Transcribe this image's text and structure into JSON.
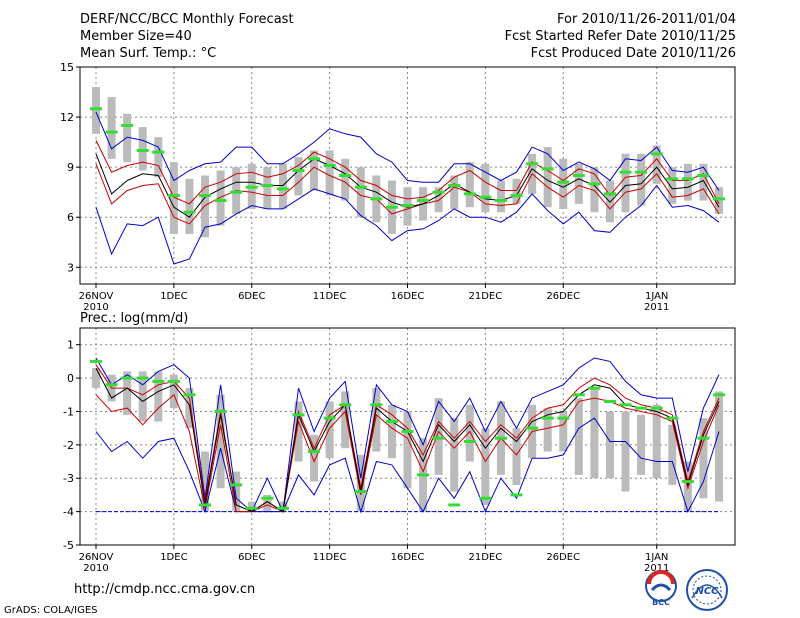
{
  "header": {
    "title": "DERF/NCC/BCC Monthly Forecast",
    "member": "Member Size=40",
    "variable": "Mean Surf. Temp.: °C",
    "forecast_period": "For 2010/11/26-2011/01/04",
    "started": "Fcst Started Refer Date 2010/11/25",
    "produced": "Fcst Produced Date 2010/11/26"
  },
  "footer": {
    "url": "http://cmdp.ncc.cma.gov.cn",
    "grads": "GrADS: COLA/IGES"
  },
  "logos": {
    "bcc": "BCC",
    "ncc": "NCC"
  },
  "colors": {
    "envelope": "#0000cc",
    "spread": "#cc0000",
    "mean": "#000000",
    "obs": "#33dd33",
    "box": "#bbbbbb",
    "zero": "#0000cc"
  },
  "chart_data": [
    {
      "type": "line",
      "title": "Mean Surf. Temp.: °C",
      "xlabel": "",
      "ylabel": "",
      "ylim": [
        2,
        15
      ],
      "yticks": [
        3,
        6,
        9,
        12,
        15
      ],
      "grid": true,
      "x_ticks": [
        {
          "day": 0,
          "label": "26NOV"
        },
        {
          "day": 5,
          "label": "1DEC"
        },
        {
          "day": 10,
          "label": "6DEC"
        },
        {
          "day": 15,
          "label": "11DEC"
        },
        {
          "day": 20,
          "label": "16DEC"
        },
        {
          "day": 25,
          "label": "21DEC"
        },
        {
          "day": 30,
          "label": "26DEC"
        },
        {
          "day": 36,
          "label": "1JAN"
        }
      ],
      "year_labels": [
        {
          "day": 0,
          "label": "2010"
        },
        {
          "day": 36,
          "label": "2011"
        }
      ],
      "series": [
        {
          "name": "max",
          "values": [
            12.3,
            10.1,
            10.8,
            10.6,
            10.2,
            8.2,
            8.8,
            9.2,
            9.3,
            10.2,
            10.2,
            9.2,
            9.2,
            9.8,
            10.5,
            11.3,
            11.0,
            10.8,
            9.8,
            9.3,
            8.2,
            8.1,
            8.1,
            9.2,
            9.2,
            8.7,
            8.2,
            8.7,
            10.2,
            9.8,
            8.8,
            9.3,
            8.9,
            8.2,
            9.5,
            9.4,
            10.2,
            8.8,
            8.7,
            9.0,
            7.6
          ]
        },
        {
          "name": "spread_high",
          "values": [
            10.6,
            8.7,
            9.1,
            9.3,
            9.1,
            7.2,
            6.8,
            7.8,
            8.1,
            8.6,
            8.7,
            8.4,
            8.6,
            9.1,
            9.9,
            9.5,
            9.0,
            8.2,
            7.9,
            7.3,
            7.1,
            7.2,
            7.6,
            8.4,
            8.8,
            8.1,
            7.6,
            7.6,
            9.3,
            8.8,
            8.2,
            8.9,
            8.6,
            7.3,
            8.4,
            8.5,
            9.5,
            8.2,
            8.2,
            8.6,
            6.8
          ]
        },
        {
          "name": "ensemble_mean",
          "values": [
            9.8,
            7.4,
            8.2,
            8.6,
            8.5,
            6.6,
            6.0,
            7.2,
            7.7,
            8.1,
            8.1,
            7.9,
            7.9,
            8.8,
            9.5,
            9.1,
            8.6,
            7.8,
            7.5,
            6.9,
            6.6,
            6.8,
            7.3,
            8.0,
            7.5,
            7.1,
            7.0,
            7.3,
            8.9,
            8.2,
            7.8,
            8.3,
            7.9,
            6.9,
            7.9,
            8.0,
            9.0,
            7.7,
            7.8,
            8.2,
            6.6
          ]
        },
        {
          "name": "spread_low",
          "values": [
            9.2,
            6.8,
            7.6,
            7.9,
            8.0,
            6.0,
            5.6,
            6.7,
            7.2,
            7.6,
            7.5,
            7.3,
            7.3,
            8.1,
            9.0,
            8.5,
            8.1,
            7.3,
            7.1,
            6.2,
            6.5,
            6.8,
            7.0,
            7.8,
            7.5,
            6.8,
            6.7,
            6.8,
            8.6,
            7.8,
            7.2,
            7.9,
            7.6,
            6.5,
            7.5,
            7.7,
            8.6,
            7.2,
            7.3,
            7.7,
            6.2
          ]
        },
        {
          "name": "min",
          "values": [
            6.6,
            3.8,
            5.6,
            5.5,
            6.0,
            3.2,
            3.5,
            5.4,
            5.6,
            6.2,
            6.7,
            6.5,
            6.5,
            7.1,
            7.7,
            7.4,
            7.1,
            6.1,
            5.5,
            4.6,
            5.2,
            5.3,
            5.8,
            6.5,
            6.0,
            6.0,
            5.7,
            6.3,
            7.4,
            6.4,
            5.6,
            6.3,
            5.2,
            5.1,
            6.0,
            6.7,
            7.9,
            6.6,
            6.7,
            6.4,
            5.7
          ]
        },
        {
          "name": "box_top",
          "values": [
            13.8,
            13.2,
            12.2,
            11.4,
            10.8,
            9.3,
            8.3,
            8.5,
            8.8,
            9.0,
            9.2,
            9.0,
            9.2,
            9.6,
            10.0,
            10.0,
            9.5,
            9.0,
            8.5,
            8.2,
            7.8,
            7.8,
            7.8,
            8.5,
            9.3,
            9.2,
            8.2,
            8.3,
            9.8,
            10.2,
            9.5,
            9.2,
            9.0,
            8.2,
            9.8,
            9.8,
            10.3,
            9.0,
            9.2,
            9.2,
            7.8
          ]
        },
        {
          "name": "box_bottom",
          "values": [
            11.0,
            9.5,
            9.3,
            8.8,
            8.4,
            5.0,
            5.0,
            4.8,
            5.5,
            6.2,
            6.5,
            6.5,
            6.5,
            7.3,
            7.6,
            7.3,
            7.0,
            6.0,
            5.7,
            5.0,
            5.5,
            5.8,
            6.3,
            6.5,
            6.6,
            6.3,
            6.3,
            6.8,
            7.4,
            6.6,
            6.5,
            6.8,
            6.3,
            5.7,
            6.3,
            6.7,
            8.0,
            6.8,
            7.0,
            7.0,
            6.2
          ]
        },
        {
          "name": "observed",
          "values": [
            12.5,
            11.1,
            11.5,
            10.0,
            9.9,
            7.3,
            6.3,
            7.3,
            7.0,
            7.5,
            7.8,
            7.9,
            7.7,
            8.8,
            9.5,
            9.1,
            8.5,
            7.8,
            7.1,
            6.6,
            6.7,
            7.0,
            7.5,
            7.9,
            7.4,
            7.2,
            7.0,
            7.3,
            9.2,
            8.9,
            8.1,
            8.5,
            8.0,
            7.4,
            8.7,
            8.7,
            9.8,
            8.3,
            8.3,
            8.5,
            7.1
          ]
        }
      ]
    },
    {
      "type": "line",
      "title": "Prec.: log(mm/d)",
      "xlabel": "",
      "ylabel": "",
      "ylim": [
        -5,
        1.5
      ],
      "yticks": [
        -5,
        -4,
        -3,
        -2,
        -1,
        0,
        1
      ],
      "grid": true,
      "x_ticks": [
        {
          "day": 0,
          "label": "26NOV"
        },
        {
          "day": 5,
          "label": "1DEC"
        },
        {
          "day": 10,
          "label": "6DEC"
        },
        {
          "day": 15,
          "label": "11DEC"
        },
        {
          "day": 20,
          "label": "16DEC"
        },
        {
          "day": 25,
          "label": "21DEC"
        },
        {
          "day": 30,
          "label": "26DEC"
        },
        {
          "day": 36,
          "label": "1JAN"
        }
      ],
      "year_labels": [
        {
          "day": 0,
          "label": "2010"
        },
        {
          "day": 36,
          "label": "2011"
        }
      ],
      "series": [
        {
          "name": "max",
          "values": [
            0.6,
            -0.2,
            0.1,
            -0.2,
            0.2,
            0.4,
            0.0,
            -3.6,
            -0.2,
            -3.6,
            -4.0,
            -3.0,
            -4.0,
            -0.3,
            -1.6,
            -0.6,
            -0.1,
            -3.0,
            -0.2,
            -0.8,
            -1.0,
            -2.0,
            -0.7,
            -1.3,
            -0.6,
            -1.6,
            -0.7,
            -1.5,
            -0.6,
            -0.4,
            -0.2,
            0.3,
            0.6,
            0.5,
            -0.1,
            -0.5,
            -0.6,
            -0.6,
            -2.8,
            -0.9,
            0.1
          ]
        },
        {
          "name": "spread_high",
          "values": [
            0.4,
            -0.3,
            -0.3,
            -0.5,
            -0.2,
            -0.1,
            -0.6,
            -3.7,
            -1.0,
            -3.8,
            -4.0,
            -3.7,
            -4.0,
            -1.0,
            -2.1,
            -1.1,
            -0.8,
            -3.3,
            -0.8,
            -1.1,
            -1.5,
            -2.3,
            -1.3,
            -1.8,
            -1.3,
            -1.9,
            -1.4,
            -1.8,
            -1.2,
            -0.9,
            -0.8,
            -0.3,
            0.0,
            -0.2,
            -0.6,
            -0.8,
            -0.9,
            -1.1,
            -3.1,
            -1.6,
            -0.6
          ]
        },
        {
          "name": "ensemble_mean",
          "values": [
            0.3,
            -0.6,
            -0.3,
            -0.7,
            -0.4,
            -0.2,
            -0.8,
            -3.8,
            -1.1,
            -3.8,
            -4.0,
            -3.7,
            -4.0,
            -1.1,
            -2.2,
            -1.3,
            -0.8,
            -3.4,
            -0.9,
            -1.3,
            -1.6,
            -2.5,
            -1.4,
            -1.9,
            -1.4,
            -2.1,
            -1.5,
            -1.9,
            -1.3,
            -1.1,
            -1.0,
            -0.5,
            -0.2,
            -0.3,
            -0.8,
            -0.9,
            -1.0,
            -1.2,
            -3.2,
            -1.7,
            -0.7
          ]
        },
        {
          "name": "spread_low",
          "values": [
            -0.5,
            -1.0,
            -0.9,
            -1.4,
            -0.9,
            -0.5,
            -1.6,
            -3.9,
            -1.4,
            -4.0,
            -4.0,
            -3.8,
            -4.0,
            -1.3,
            -2.5,
            -1.5,
            -1.0,
            -3.5,
            -1.1,
            -1.5,
            -1.8,
            -2.8,
            -1.6,
            -2.1,
            -1.6,
            -2.5,
            -1.8,
            -2.3,
            -1.6,
            -1.5,
            -1.4,
            -0.7,
            -0.6,
            -0.7,
            -0.9,
            -1.0,
            -1.1,
            -1.3,
            -3.3,
            -1.9,
            -0.8
          ]
        },
        {
          "name": "min",
          "values": [
            -1.6,
            -2.2,
            -1.9,
            -2.4,
            -1.9,
            -1.8,
            -2.8,
            -4.0,
            -2.1,
            -4.0,
            -4.0,
            -4.0,
            -4.0,
            -2.9,
            -3.5,
            -2.6,
            -2.4,
            -4.0,
            -2.5,
            -2.6,
            -3.3,
            -4.0,
            -3.0,
            -3.6,
            -2.8,
            -4.0,
            -3.0,
            -3.6,
            -2.4,
            -2.4,
            -2.3,
            -1.5,
            -1.2,
            -1.9,
            -1.9,
            -2.4,
            -2.5,
            -2.5,
            -4.0,
            -3.1,
            -1.6
          ]
        },
        {
          "name": "box_top",
          "values": [
            0.3,
            0.1,
            0.2,
            0.2,
            0.2,
            0.1,
            -0.3,
            -2.2,
            -0.5,
            -2.8,
            -3.7,
            -3.5,
            -3.7,
            -0.7,
            -1.7,
            -0.7,
            -0.4,
            -2.3,
            -0.3,
            -0.8,
            -1.0,
            -1.8,
            -0.6,
            -1.2,
            -0.8,
            -1.5,
            -0.7,
            -1.5,
            -0.8,
            -0.9,
            -1.0,
            -0.6,
            -0.3,
            -1.0,
            -1.0,
            -1.1,
            -0.8,
            -1.4,
            -2.5,
            -1.2,
            -0.4
          ]
        },
        {
          "name": "box_bottom",
          "values": [
            -0.3,
            -0.7,
            -1.1,
            -1.3,
            -1.3,
            -0.9,
            -1.5,
            -4.0,
            -3.3,
            -4.0,
            -4.0,
            -4.0,
            -4.0,
            -2.5,
            -3.1,
            -2.4,
            -2.1,
            -4.0,
            -2.2,
            -2.4,
            -3.3,
            -4.0,
            -2.9,
            -3.4,
            -2.5,
            -3.8,
            -2.9,
            -3.2,
            -2.4,
            -2.2,
            -2.2,
            -2.9,
            -3.0,
            -3.0,
            -3.4,
            -2.9,
            -3.0,
            -3.2,
            -4.0,
            -3.6,
            -3.7
          ]
        },
        {
          "name": "observed",
          "values": [
            0.5,
            -0.2,
            0.0,
            0.0,
            -0.1,
            -0.1,
            -0.5,
            -3.8,
            -1.0,
            -3.2,
            -3.9,
            -3.6,
            -3.9,
            -1.1,
            -2.2,
            -1.2,
            -0.8,
            -3.4,
            -0.8,
            -1.3,
            -1.6,
            -2.9,
            -1.8,
            -3.8,
            -1.9,
            -3.6,
            -1.8,
            -3.5,
            -1.5,
            -1.2,
            -1.2,
            -0.5,
            -0.3,
            -0.7,
            -0.8,
            -0.9,
            -0.9,
            -1.2,
            -3.1,
            -1.8,
            -0.5
          ]
        }
      ]
    }
  ]
}
